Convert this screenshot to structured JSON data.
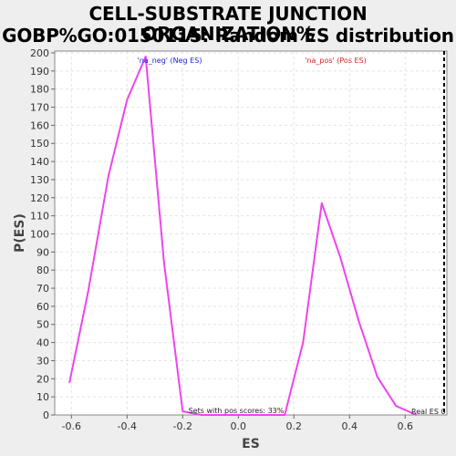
{
  "chart_data": {
    "type": "line",
    "title_lines": [
      "CELL-SUBSTRATE JUNCTION ORGANIZATION%",
      "GOBP%GO:0150115: Random ES distribution"
    ],
    "xlabel": "ES",
    "ylabel": "P(ES)",
    "xlim": [
      -0.66,
      0.75
    ],
    "ylim": [
      0,
      201
    ],
    "xticks": [
      -0.6,
      -0.4,
      -0.2,
      0.0,
      0.2,
      0.4,
      0.6
    ],
    "xtick_labels": [
      "-0.6",
      "-0.4",
      "-0.2",
      "0.0",
      "0.2",
      "0.4",
      "0.6"
    ],
    "yticks": [
      0,
      10,
      20,
      30,
      40,
      50,
      60,
      70,
      80,
      90,
      100,
      110,
      120,
      130,
      140,
      150,
      160,
      170,
      180,
      190,
      200
    ],
    "grid": true,
    "series": [
      {
        "color": "#ee44ee",
        "x": [
          -0.607,
          -0.54,
          -0.467,
          -0.4,
          -0.333,
          -0.267,
          -0.2,
          -0.133,
          0.167,
          0.233,
          0.3,
          0.367,
          0.433,
          0.5,
          0.567,
          0.64
        ],
        "y": [
          18,
          68,
          132,
          174,
          198,
          84,
          2,
          0,
          0,
          40,
          117,
          87,
          52,
          21,
          5,
          0
        ]
      }
    ],
    "annotations": {
      "neg_label": "'na_neg' (Neg ES)",
      "neg_color": "#2222dd",
      "pos_label": "'na_pos' (Pos ES)",
      "pos_color": "#dd2222",
      "bottom_note": "Sets with pos scores: 33%",
      "real_es_label": "Real ES 0",
      "real_es_x": 0.74
    }
  }
}
